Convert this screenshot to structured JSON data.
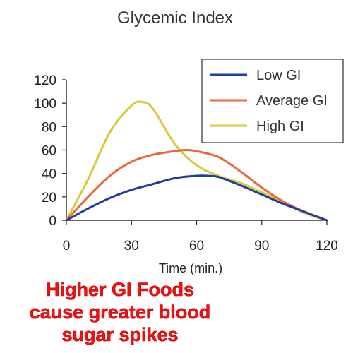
{
  "chart_data": {
    "type": "line",
    "title": "Glycemic Index",
    "xlabel": "Time (min.)",
    "ylabel": "",
    "xlim": [
      0,
      120
    ],
    "ylim": [
      0,
      120
    ],
    "xticks": [
      0,
      30,
      60,
      90,
      120
    ],
    "yticks": [
      0,
      20,
      40,
      60,
      80,
      100,
      120
    ],
    "grid": false,
    "legend_position": "top-right",
    "series": [
      {
        "name": "Low GI",
        "color": "#1f3d9e",
        "x": [
          0,
          10,
          20,
          30,
          40,
          50,
          60,
          65,
          70,
          80,
          90,
          100,
          110,
          120
        ],
        "y": [
          0,
          10,
          19,
          26,
          31,
          36,
          38,
          38,
          37,
          30,
          22,
          14,
          7,
          0
        ]
      },
      {
        "name": "Average GI",
        "color": "#e86a3c",
        "x": [
          0,
          10,
          20,
          30,
          40,
          50,
          55,
          60,
          70,
          80,
          90,
          100,
          110,
          120
        ],
        "y": [
          0,
          20,
          38,
          50,
          56,
          59,
          60,
          59,
          54,
          42,
          28,
          16,
          7,
          0
        ]
      },
      {
        "name": "High GI",
        "color": "#d8c93e",
        "x": [
          0,
          10,
          20,
          30,
          35,
          40,
          50,
          60,
          70,
          80,
          90,
          100,
          110,
          120
        ],
        "y": [
          0,
          35,
          75,
          98,
          101,
          95,
          65,
          47,
          38,
          32,
          24,
          15,
          6,
          0
        ]
      }
    ]
  },
  "caption": {
    "line1": "Higher GI Foods",
    "line2": "cause greater blood",
    "line3": "sugar spikes"
  }
}
